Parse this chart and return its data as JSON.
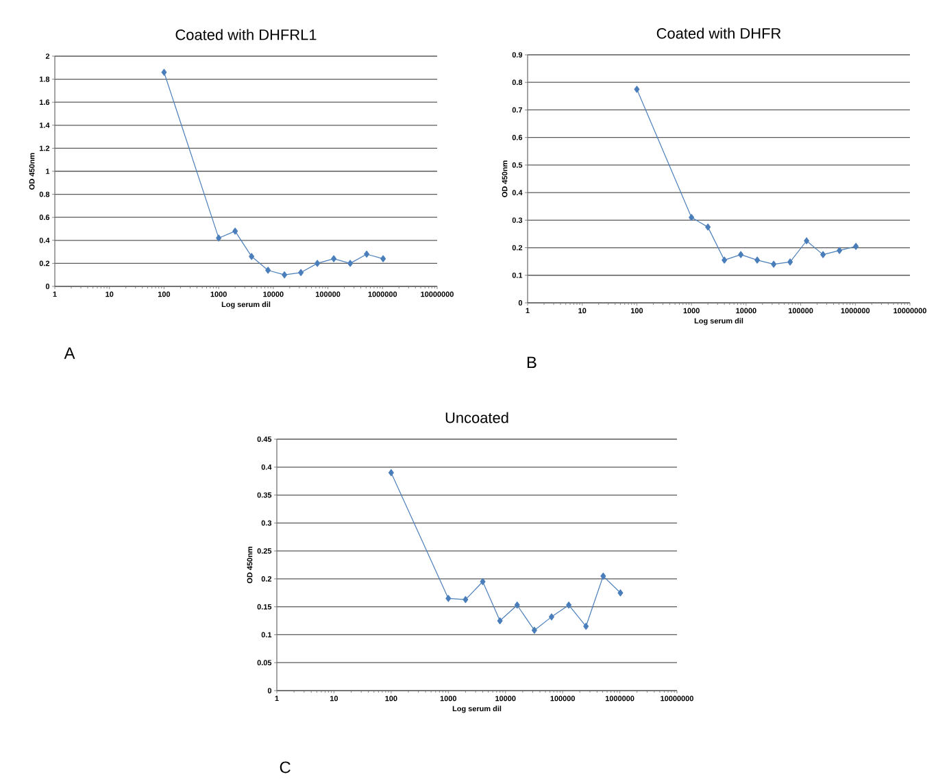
{
  "chart_data": [
    {
      "type": "line",
      "title": "Coated with DHFRL1",
      "xlabel": "Log serum dil",
      "ylabel": "OD 450nm",
      "annotations": [
        "A"
      ],
      "color": "#4a7ebb",
      "marker": "diamond",
      "log": "x",
      "grid": "y",
      "x": [
        100,
        1000,
        2000,
        4000,
        8000,
        16000,
        32000,
        64000,
        128000,
        256000,
        512000,
        1024000
      ],
      "values": [
        1.86,
        0.42,
        0.48,
        0.26,
        0.14,
        0.1,
        0.12,
        0.2,
        0.24,
        0.2,
        0.28,
        0.24
      ],
      "xlim": [
        1,
        10000000
      ],
      "xticks": [
        1,
        10,
        100,
        1000,
        10000,
        100000,
        1000000,
        10000000
      ],
      "ylim": [
        0,
        2
      ],
      "yticks": [
        0,
        0.2,
        0.4,
        0.6,
        0.8,
        1,
        1.2,
        1.4,
        1.6,
        1.8,
        2
      ]
    },
    {
      "type": "line",
      "title": "Coated with DHFR",
      "xlabel": "Log serum dil",
      "ylabel": "OD 450nm",
      "annotations": [
        "B"
      ],
      "color": "#4a7ebb",
      "marker": "diamond",
      "log": "x",
      "grid": "y",
      "x": [
        100,
        1000,
        2000,
        4000,
        8000,
        16000,
        32000,
        64000,
        128000,
        256000,
        512000,
        1024000
      ],
      "values": [
        0.775,
        0.31,
        0.275,
        0.155,
        0.175,
        0.155,
        0.14,
        0.148,
        0.225,
        0.175,
        0.19,
        0.205
      ],
      "xlim": [
        1,
        10000000
      ],
      "xticks": [
        1,
        10,
        100,
        1000,
        10000,
        100000,
        1000000,
        10000000
      ],
      "ylim": [
        0,
        0.9
      ],
      "yticks": [
        0,
        0.1,
        0.2,
        0.3,
        0.4,
        0.5,
        0.6,
        0.7,
        0.8,
        0.9
      ]
    },
    {
      "type": "line",
      "title": "Uncoated",
      "xlabel": "Log serum dil",
      "ylabel": "OD 450nm",
      "annotations": [
        "C"
      ],
      "color": "#4a7ebb",
      "marker": "diamond",
      "log": "x",
      "grid": "y",
      "x": [
        100,
        1000,
        2000,
        4000,
        8000,
        16000,
        32000,
        64000,
        128000,
        256000,
        512000,
        1024000
      ],
      "values": [
        0.39,
        0.165,
        0.163,
        0.195,
        0.125,
        0.153,
        0.108,
        0.132,
        0.153,
        0.115,
        0.205,
        0.175
      ],
      "xlim": [
        1,
        10000000
      ],
      "xticks": [
        1,
        10,
        100,
        1000,
        10000,
        100000,
        1000000,
        10000000
      ],
      "ylim": [
        0,
        0.45
      ],
      "yticks": [
        0,
        0.05,
        0.1,
        0.15,
        0.2,
        0.25,
        0.3,
        0.35,
        0.4,
        0.45
      ]
    }
  ]
}
